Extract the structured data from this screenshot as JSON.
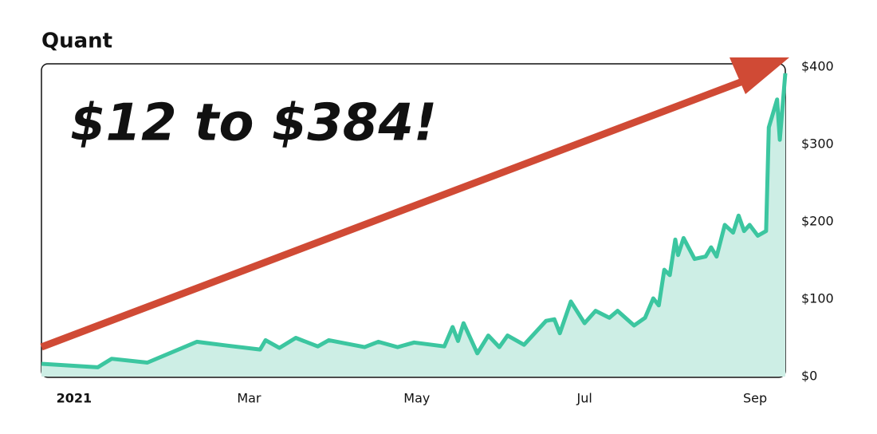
{
  "chart_data": {
    "type": "area",
    "title": "Quant",
    "annotation": "$12 to $384!",
    "x": [
      -16.5,
      4,
      9,
      22,
      40,
      51,
      63,
      65,
      70,
      76,
      84,
      88,
      101,
      106,
      113,
      119,
      130,
      133,
      135,
      137,
      142,
      146,
      150,
      153,
      159,
      167,
      170,
      172,
      176,
      181,
      185,
      190,
      193,
      199,
      203,
      206,
      208,
      210,
      212,
      214,
      215,
      217,
      221,
      225,
      227,
      229,
      232,
      235,
      237,
      239,
      241,
      244,
      247,
      248,
      251,
      252,
      254
    ],
    "series": [
      {
        "name": "Quant",
        "color": "#3cc6a0",
        "fill": "#cdeee5",
        "values": [
          16.5,
          12,
          23,
          18,
          45,
          40,
          35,
          47,
          37,
          50,
          39,
          47,
          38,
          45,
          38,
          44,
          39,
          64,
          46,
          69,
          30,
          53,
          38,
          53,
          41,
          72,
          74,
          56,
          97,
          69,
          85,
          76,
          85,
          66,
          76,
          101,
          92,
          138,
          131,
          177,
          157,
          179,
          152,
          155,
          167,
          155,
          196,
          186,
          208,
          188,
          196,
          182,
          188,
          322,
          358,
          306,
          392
        ]
      }
    ],
    "xlim": [
      -16.5,
      254
    ],
    "xticks": [
      {
        "value": 0,
        "label": "2021"
      },
      {
        "value": 59,
        "label": "Mar"
      },
      {
        "value": 120,
        "label": "May"
      },
      {
        "value": 181,
        "label": "Jul"
      },
      {
        "value": 243,
        "label": "Sep"
      }
    ],
    "ylim": [
      0,
      400
    ],
    "yticks": [
      {
        "value": 0,
        "label": "$0"
      },
      {
        "value": 100,
        "label": "$100"
      },
      {
        "value": 200,
        "label": "$200"
      },
      {
        "value": 300,
        "label": "$300"
      },
      {
        "value": 400,
        "label": "$400"
      }
    ],
    "grid": false
  }
}
